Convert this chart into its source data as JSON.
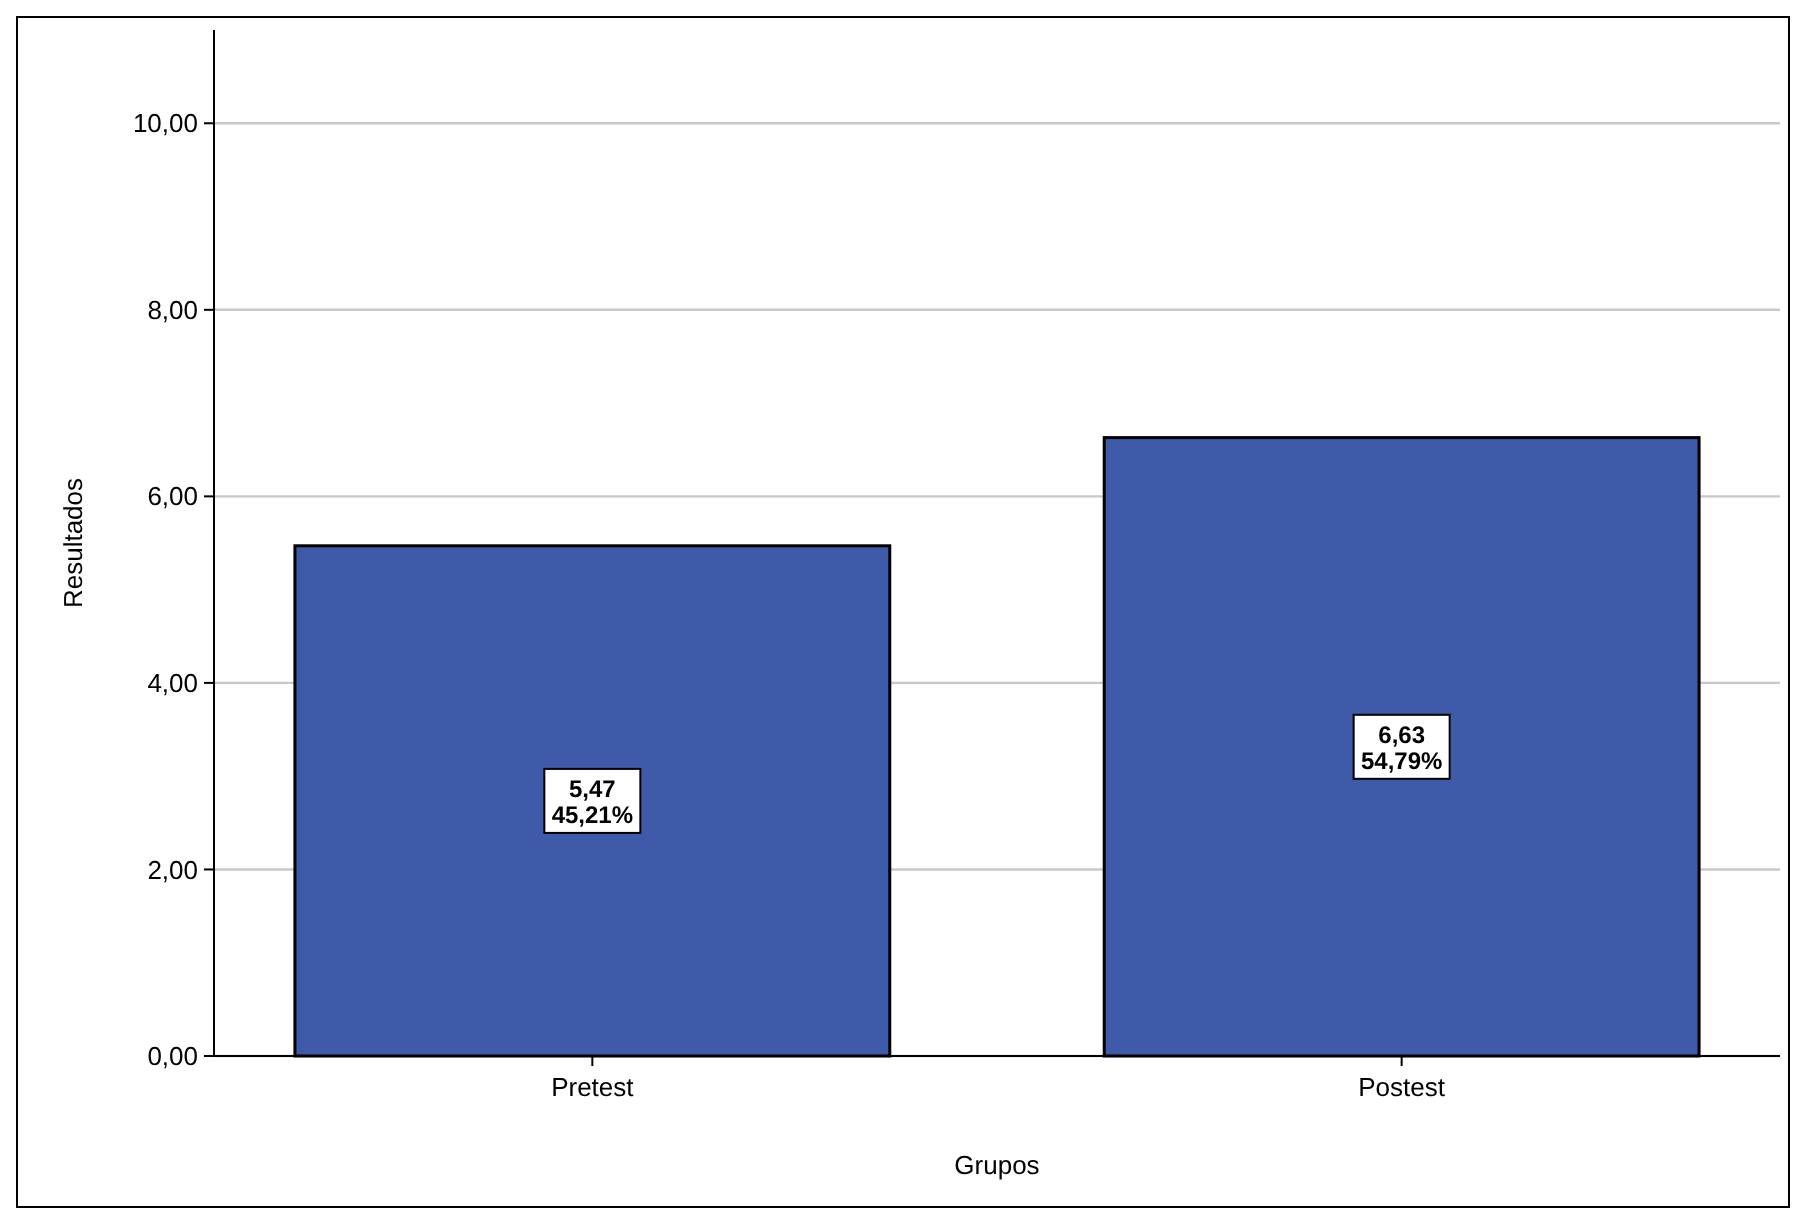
{
  "chart_data": {
    "type": "bar",
    "xlabel": "Grupos",
    "ylabel": "Resultados",
    "categories": [
      "Pretest",
      "Postest"
    ],
    "values": [
      5.47,
      6.63
    ],
    "value_labels": [
      "5,47\n45,21%",
      "6,63\n54,79%"
    ],
    "color": "#3f5aa8",
    "ylim": [
      0,
      11
    ],
    "yticks": [
      {
        "value": 0,
        "label": "0,00"
      },
      {
        "value": 2,
        "label": "2,00"
      },
      {
        "value": 4,
        "label": "4,00"
      },
      {
        "value": 6,
        "label": "6,00"
      },
      {
        "value": 8,
        "label": "8,00"
      },
      {
        "value": 10,
        "label": "10,00"
      }
    ],
    "grid": "y"
  }
}
